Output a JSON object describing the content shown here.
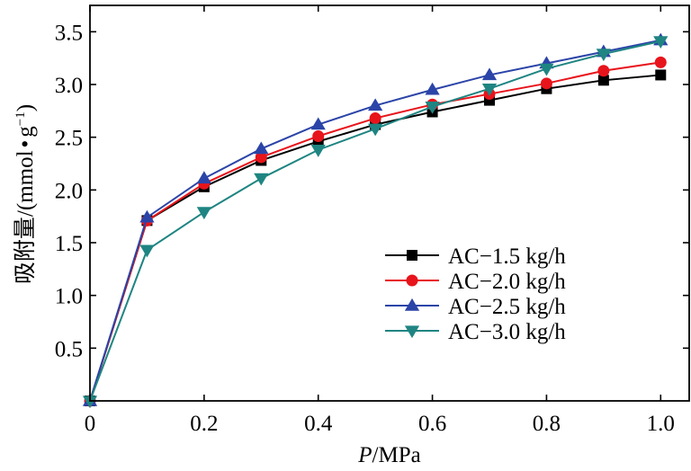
{
  "chart_data": {
    "type": "line",
    "title": "",
    "xlabel_italic": "P",
    "xlabel_unit": "/MPa",
    "ylabel_main": "吸附量/(mmol",
    "ylabel_bullet": "•",
    "ylabel_g": "g",
    "ylabel_exp": "−1",
    "ylabel_close": ")",
    "xlim": [
      0,
      1.05
    ],
    "ylim": [
      0,
      3.75
    ],
    "xticks": [
      0,
      0.2,
      0.4,
      0.6,
      0.8,
      1.0
    ],
    "xtick_labels": [
      "0",
      "0.2",
      "0.4",
      "0.6",
      "0.8",
      "1.0"
    ],
    "yticks": [
      0.5,
      1.0,
      1.5,
      2.0,
      2.5,
      3.0,
      3.5
    ],
    "ytick_labels": [
      "0.5",
      "1.0",
      "1.5",
      "2.0",
      "2.5",
      "3.0",
      "3.5"
    ],
    "grid": false,
    "legend_position": "lower-right",
    "series": [
      {
        "name": "AC−1.5 kg/h",
        "color": "#000000",
        "marker": "square",
        "x": [
          0,
          0.1,
          0.2,
          0.3,
          0.4,
          0.5,
          0.6,
          0.7,
          0.8,
          0.9,
          1.0
        ],
        "values": [
          0,
          1.71,
          2.03,
          2.28,
          2.46,
          2.62,
          2.74,
          2.85,
          2.96,
          3.04,
          3.09
        ]
      },
      {
        "name": "AC−2.0 kg/h",
        "color": "#e8141b",
        "marker": "circle",
        "x": [
          0,
          0.1,
          0.2,
          0.3,
          0.4,
          0.5,
          0.6,
          0.7,
          0.8,
          0.9,
          1.0
        ],
        "values": [
          0,
          1.71,
          2.06,
          2.31,
          2.51,
          2.68,
          2.81,
          2.91,
          3.01,
          3.13,
          3.21
        ]
      },
      {
        "name": "AC−2.5 kg/h",
        "color": "#2b44a8",
        "marker": "triangle-up",
        "x": [
          0,
          0.1,
          0.2,
          0.3,
          0.4,
          0.5,
          0.6,
          0.7,
          0.8,
          0.9,
          1.0
        ],
        "values": [
          0,
          1.74,
          2.11,
          2.39,
          2.62,
          2.8,
          2.95,
          3.09,
          3.2,
          3.31,
          3.42
        ]
      },
      {
        "name": "AC−3.0 kg/h",
        "color": "#1f8582",
        "marker": "triangle-down",
        "x": [
          0,
          0.1,
          0.2,
          0.3,
          0.4,
          0.5,
          0.6,
          0.7,
          0.8,
          0.9,
          1.0
        ],
        "values": [
          0,
          1.43,
          1.79,
          2.11,
          2.38,
          2.58,
          2.79,
          2.96,
          3.15,
          3.29,
          3.41
        ]
      }
    ]
  }
}
